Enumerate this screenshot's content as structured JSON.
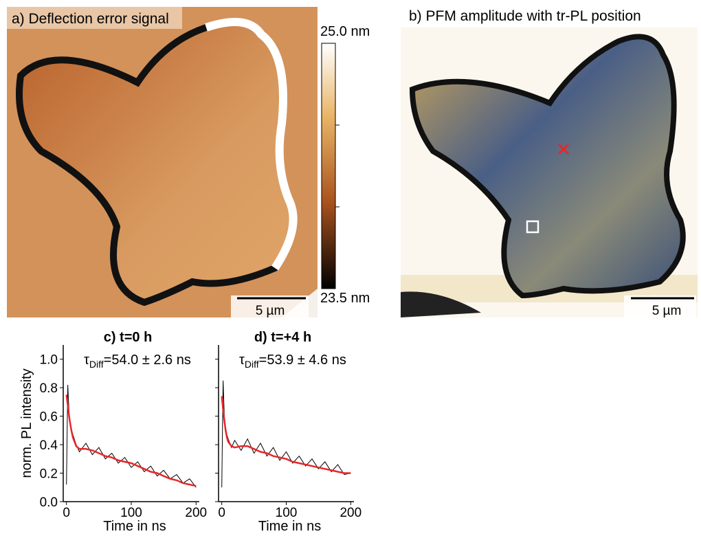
{
  "panels": [
    {
      "title": "a) Deflection error signal",
      "colorbar": {
        "top": "25.0 nm",
        "bottom": "23.5 nm"
      },
      "scale_bar": "5 µm"
    },
    {
      "title": "b) PFM amplitude with tr-PL position",
      "scale_bar": "5 µm"
    }
  ],
  "chart_data": [
    {
      "type": "line",
      "title": "c) t=0 h",
      "annotation": {
        "symbol": "τ",
        "subscript": "Diff",
        "text": "=54.0 ± 2.6 ns"
      },
      "x_label": "Time in ns",
      "y_label": "norm. PL intensity",
      "x": [
        0,
        2,
        4,
        6,
        8,
        10,
        15,
        20,
        30,
        40,
        50,
        60,
        70,
        80,
        90,
        100,
        110,
        120,
        130,
        140,
        150,
        160,
        170,
        180,
        190,
        200
      ],
      "series": [
        {
          "color": "#000000",
          "values": [
            0.12,
            0.82,
            0.62,
            0.55,
            0.5,
            0.47,
            0.4,
            0.35,
            0.41,
            0.33,
            0.38,
            0.3,
            0.34,
            0.27,
            0.31,
            0.24,
            0.28,
            0.21,
            0.25,
            0.18,
            0.22,
            0.16,
            0.19,
            0.13,
            0.16,
            0.1
          ]
        },
        {
          "color": "#e8262a",
          "values": [
            0.75,
            0.68,
            0.6,
            0.54,
            0.49,
            0.45,
            0.39,
            0.37,
            0.37,
            0.36,
            0.34,
            0.32,
            0.31,
            0.29,
            0.28,
            0.27,
            0.25,
            0.23,
            0.21,
            0.2,
            0.18,
            0.16,
            0.15,
            0.13,
            0.12,
            0.11
          ]
        }
      ],
      "xlim": [
        -5,
        205
      ],
      "xticks": [
        0,
        100,
        200
      ],
      "ylim": [
        0,
        1.1
      ],
      "yticks": [
        {
          "value": 0,
          "label": "0.0"
        },
        {
          "value": 0.2,
          "label": "0.2"
        },
        {
          "value": 0.4,
          "label": "0.4"
        },
        {
          "value": 0.6,
          "label": "0.6"
        },
        {
          "value": 0.8,
          "label": "0.8"
        },
        {
          "value": 1,
          "label": "1.0"
        }
      ]
    },
    {
      "type": "line",
      "title": "d) t=+4 h",
      "annotation": {
        "symbol": "τ",
        "subscript": "Diff",
        "text": "=53.9 ± 4.6 ns"
      },
      "x_label": "Time in ns",
      "x": [
        0,
        2,
        4,
        6,
        8,
        10,
        15,
        20,
        30,
        40,
        50,
        60,
        70,
        80,
        90,
        100,
        110,
        120,
        130,
        140,
        150,
        160,
        170,
        180,
        190,
        200
      ],
      "series": [
        {
          "color": "#000000",
          "values": [
            0.1,
            0.85,
            0.6,
            0.52,
            0.47,
            0.44,
            0.38,
            0.43,
            0.36,
            0.44,
            0.34,
            0.41,
            0.32,
            0.38,
            0.29,
            0.35,
            0.27,
            0.32,
            0.25,
            0.3,
            0.23,
            0.28,
            0.21,
            0.26,
            0.19,
            0.2
          ]
        },
        {
          "color": "#e8262a",
          "values": [
            0.74,
            0.65,
            0.57,
            0.5,
            0.45,
            0.42,
            0.39,
            0.38,
            0.39,
            0.39,
            0.37,
            0.35,
            0.34,
            0.32,
            0.31,
            0.3,
            0.28,
            0.27,
            0.26,
            0.25,
            0.24,
            0.23,
            0.22,
            0.21,
            0.2,
            0.2
          ]
        }
      ],
      "xlim": [
        -5,
        205
      ],
      "xticks": [
        0,
        100,
        200
      ],
      "ylim": [
        0,
        1.1
      ],
      "yticks": [
        0,
        0.2,
        0.4,
        0.6,
        0.8,
        1
      ]
    }
  ]
}
